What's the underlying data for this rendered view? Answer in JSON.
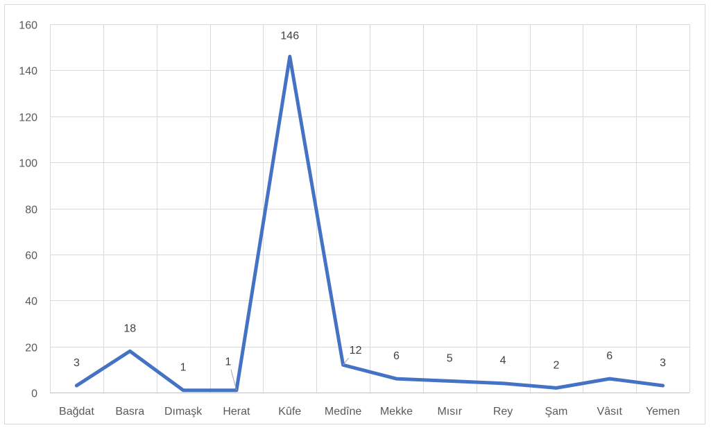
{
  "chart_data": {
    "type": "line",
    "title": "",
    "xlabel": "",
    "ylabel": "",
    "categories": [
      "Bağdat",
      "Basra",
      "Dımaşk",
      "Herat",
      "Kûfe",
      "Medîne",
      "Mekke",
      "Mısır",
      "Rey",
      "Şam",
      "Vâsıt",
      "Yemen"
    ],
    "series": [
      {
        "values": [
          3,
          18,
          1,
          1,
          146,
          12,
          6,
          5,
          4,
          2,
          6,
          3
        ],
        "color": "#4472c4"
      }
    ],
    "ylim": [
      0,
      160
    ],
    "yticks": [
      0,
      20,
      40,
      60,
      80,
      100,
      120,
      140,
      160
    ],
    "grid": "both",
    "legend": "none",
    "data_labels": true
  }
}
